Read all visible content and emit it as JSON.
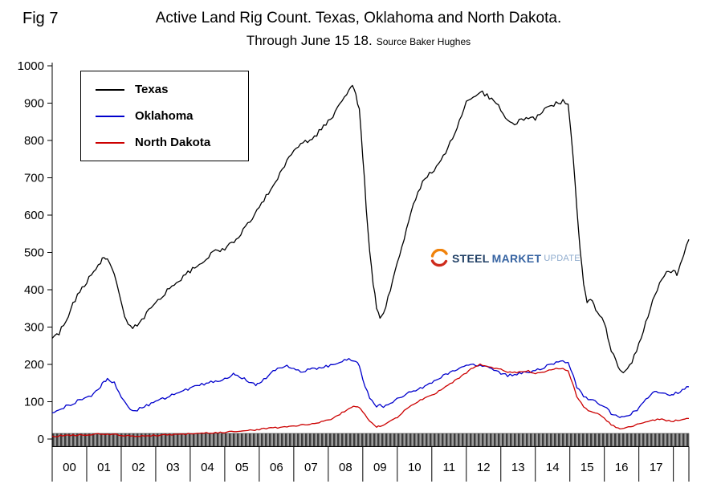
{
  "figure": {
    "fig_label": "Fig 7",
    "title": "Active Land Rig Count. Texas, Oklahoma and North Dakota.",
    "subtitle": "Through June 15 18.",
    "source": "Source Baker Hughes"
  },
  "watermark": {
    "word1": "STEEL",
    "word2": "MARKET",
    "word3": "UPDATE"
  },
  "chart_data": {
    "type": "line",
    "title": "Active Land Rig Count. Texas, Oklahoma and North Dakota. Through June 15 18.",
    "xlabel": "",
    "ylabel": "",
    "grid": false,
    "legend": {
      "position": "top-left",
      "entries": [
        "Texas",
        "Oklahoma",
        "North Dakota"
      ]
    },
    "x_axis": {
      "start": 2000,
      "end": 2018.45,
      "tick_labels": [
        "00",
        "01",
        "02",
        "03",
        "04",
        "05",
        "06",
        "07",
        "08",
        "09",
        "10",
        "11",
        "12",
        "13",
        "14",
        "15",
        "16",
        "17"
      ]
    },
    "y_axis": {
      "min": 0,
      "max": 1000,
      "tick_step": 100,
      "tick_labels": [
        "0",
        "100",
        "200",
        "300",
        "400",
        "500",
        "600",
        "700",
        "800",
        "900",
        "1000"
      ]
    },
    "series": [
      {
        "name": "Texas",
        "color": "#000000",
        "jitter": 6,
        "points": [
          [
            2000.0,
            270
          ],
          [
            2000.2,
            285
          ],
          [
            2000.4,
            320
          ],
          [
            2000.6,
            360
          ],
          [
            2000.8,
            395
          ],
          [
            2001.0,
            420
          ],
          [
            2001.2,
            450
          ],
          [
            2001.4,
            470
          ],
          [
            2001.5,
            490
          ],
          [
            2001.6,
            478
          ],
          [
            2001.8,
            440
          ],
          [
            2002.0,
            370
          ],
          [
            2002.1,
            330
          ],
          [
            2002.2,
            305
          ],
          [
            2002.4,
            300
          ],
          [
            2002.6,
            320
          ],
          [
            2002.8,
            345
          ],
          [
            2003.0,
            360
          ],
          [
            2003.2,
            385
          ],
          [
            2003.4,
            405
          ],
          [
            2003.6,
            420
          ],
          [
            2003.8,
            435
          ],
          [
            2004.0,
            450
          ],
          [
            2004.2,
            465
          ],
          [
            2004.4,
            480
          ],
          [
            2004.6,
            495
          ],
          [
            2004.8,
            505
          ],
          [
            2005.0,
            510
          ],
          [
            2005.2,
            525
          ],
          [
            2005.4,
            545
          ],
          [
            2005.6,
            565
          ],
          [
            2005.8,
            595
          ],
          [
            2006.0,
            625
          ],
          [
            2006.2,
            650
          ],
          [
            2006.4,
            680
          ],
          [
            2006.6,
            710
          ],
          [
            2006.8,
            745
          ],
          [
            2007.0,
            775
          ],
          [
            2007.2,
            788
          ],
          [
            2007.4,
            800
          ],
          [
            2007.6,
            810
          ],
          [
            2007.8,
            830
          ],
          [
            2008.0,
            850
          ],
          [
            2008.2,
            875
          ],
          [
            2008.4,
            905
          ],
          [
            2008.6,
            940
          ],
          [
            2008.7,
            945
          ],
          [
            2008.8,
            925
          ],
          [
            2008.9,
            880
          ],
          [
            2009.0,
            760
          ],
          [
            2009.1,
            620
          ],
          [
            2009.2,
            500
          ],
          [
            2009.3,
            420
          ],
          [
            2009.4,
            350
          ],
          [
            2009.5,
            325
          ],
          [
            2009.6,
            340
          ],
          [
            2009.8,
            395
          ],
          [
            2010.0,
            470
          ],
          [
            2010.2,
            540
          ],
          [
            2010.4,
            610
          ],
          [
            2010.6,
            660
          ],
          [
            2010.8,
            700
          ],
          [
            2011.0,
            715
          ],
          [
            2011.2,
            740
          ],
          [
            2011.4,
            770
          ],
          [
            2011.6,
            805
          ],
          [
            2011.8,
            855
          ],
          [
            2012.0,
            900
          ],
          [
            2012.2,
            915
          ],
          [
            2012.4,
            930
          ],
          [
            2012.6,
            920
          ],
          [
            2012.8,
            910
          ],
          [
            2013.0,
            880
          ],
          [
            2013.2,
            850
          ],
          [
            2013.4,
            845
          ],
          [
            2013.6,
            855
          ],
          [
            2013.8,
            860
          ],
          [
            2014.0,
            858
          ],
          [
            2014.2,
            875
          ],
          [
            2014.4,
            890
          ],
          [
            2014.6,
            900
          ],
          [
            2014.8,
            905
          ],
          [
            2014.95,
            895
          ],
          [
            2015.1,
            750
          ],
          [
            2015.2,
            620
          ],
          [
            2015.3,
            500
          ],
          [
            2015.4,
            420
          ],
          [
            2015.5,
            370
          ],
          [
            2015.6,
            375
          ],
          [
            2015.7,
            355
          ],
          [
            2015.8,
            340
          ],
          [
            2016.0,
            315
          ],
          [
            2016.1,
            270
          ],
          [
            2016.2,
            235
          ],
          [
            2016.4,
            195
          ],
          [
            2016.5,
            180
          ],
          [
            2016.6,
            178
          ],
          [
            2016.8,
            205
          ],
          [
            2017.0,
            255
          ],
          [
            2017.2,
            310
          ],
          [
            2017.4,
            370
          ],
          [
            2017.6,
            420
          ],
          [
            2017.8,
            445
          ],
          [
            2018.0,
            450
          ],
          [
            2018.1,
            442
          ],
          [
            2018.2,
            465
          ],
          [
            2018.3,
            495
          ],
          [
            2018.45,
            535
          ]
        ]
      },
      {
        "name": "Oklahoma",
        "color": "#0000cc",
        "jitter": 3.5,
        "points": [
          [
            2000.0,
            70
          ],
          [
            2000.2,
            78
          ],
          [
            2000.4,
            88
          ],
          [
            2000.6,
            95
          ],
          [
            2000.8,
            105
          ],
          [
            2001.0,
            110
          ],
          [
            2001.2,
            120
          ],
          [
            2001.4,
            140
          ],
          [
            2001.5,
            155
          ],
          [
            2001.6,
            160
          ],
          [
            2001.8,
            150
          ],
          [
            2002.0,
            115
          ],
          [
            2002.2,
            85
          ],
          [
            2002.4,
            75
          ],
          [
            2002.6,
            85
          ],
          [
            2002.8,
            92
          ],
          [
            2003.0,
            100
          ],
          [
            2003.2,
            108
          ],
          [
            2003.4,
            115
          ],
          [
            2003.6,
            122
          ],
          [
            2003.8,
            130
          ],
          [
            2004.0,
            135
          ],
          [
            2004.2,
            142
          ],
          [
            2004.4,
            148
          ],
          [
            2004.6,
            152
          ],
          [
            2004.8,
            155
          ],
          [
            2005.0,
            160
          ],
          [
            2005.2,
            172
          ],
          [
            2005.3,
            175
          ],
          [
            2005.5,
            165
          ],
          [
            2005.7,
            152
          ],
          [
            2005.9,
            145
          ],
          [
            2006.0,
            148
          ],
          [
            2006.2,
            165
          ],
          [
            2006.4,
            180
          ],
          [
            2006.6,
            192
          ],
          [
            2006.8,
            196
          ],
          [
            2007.0,
            190
          ],
          [
            2007.2,
            182
          ],
          [
            2007.4,
            185
          ],
          [
            2007.6,
            188
          ],
          [
            2007.8,
            192
          ],
          [
            2008.0,
            196
          ],
          [
            2008.2,
            200
          ],
          [
            2008.4,
            208
          ],
          [
            2008.6,
            215
          ],
          [
            2008.8,
            208
          ],
          [
            2008.9,
            195
          ],
          [
            2009.0,
            160
          ],
          [
            2009.2,
            110
          ],
          [
            2009.4,
            85
          ],
          [
            2009.5,
            92
          ],
          [
            2009.6,
            84
          ],
          [
            2009.8,
            95
          ],
          [
            2010.0,
            110
          ],
          [
            2010.2,
            118
          ],
          [
            2010.4,
            126
          ],
          [
            2010.6,
            132
          ],
          [
            2010.8,
            140
          ],
          [
            2011.0,
            150
          ],
          [
            2011.2,
            162
          ],
          [
            2011.4,
            172
          ],
          [
            2011.6,
            180
          ],
          [
            2011.8,
            188
          ],
          [
            2012.0,
            195
          ],
          [
            2012.2,
            200
          ],
          [
            2012.4,
            198
          ],
          [
            2012.6,
            192
          ],
          [
            2012.8,
            185
          ],
          [
            2013.0,
            176
          ],
          [
            2013.2,
            170
          ],
          [
            2013.4,
            172
          ],
          [
            2013.6,
            176
          ],
          [
            2013.8,
            180
          ],
          [
            2014.0,
            185
          ],
          [
            2014.2,
            190
          ],
          [
            2014.4,
            198
          ],
          [
            2014.6,
            205
          ],
          [
            2014.8,
            210
          ],
          [
            2014.95,
            205
          ],
          [
            2015.1,
            170
          ],
          [
            2015.2,
            140
          ],
          [
            2015.4,
            115
          ],
          [
            2015.6,
            105
          ],
          [
            2015.8,
            98
          ],
          [
            2016.0,
            88
          ],
          [
            2016.2,
            68
          ],
          [
            2016.4,
            60
          ],
          [
            2016.5,
            58
          ],
          [
            2016.7,
            64
          ],
          [
            2016.9,
            75
          ],
          [
            2017.0,
            82
          ],
          [
            2017.2,
            108
          ],
          [
            2017.4,
            122
          ],
          [
            2017.5,
            126
          ],
          [
            2017.7,
            120
          ],
          [
            2017.9,
            118
          ],
          [
            2018.0,
            120
          ],
          [
            2018.2,
            128
          ],
          [
            2018.45,
            140
          ]
        ]
      },
      {
        "name": "North Dakota",
        "color": "#cc0000",
        "jitter": 2,
        "points": [
          [
            2000.0,
            8
          ],
          [
            2000.3,
            9
          ],
          [
            2000.6,
            10
          ],
          [
            2001.0,
            12
          ],
          [
            2001.4,
            14
          ],
          [
            2001.8,
            12
          ],
          [
            2002.0,
            10
          ],
          [
            2002.4,
            8
          ],
          [
            2002.8,
            9
          ],
          [
            2003.0,
            10
          ],
          [
            2003.4,
            12
          ],
          [
            2003.8,
            13
          ],
          [
            2004.0,
            14
          ],
          [
            2004.4,
            16
          ],
          [
            2004.8,
            17
          ],
          [
            2005.0,
            18
          ],
          [
            2005.4,
            21
          ],
          [
            2005.8,
            24
          ],
          [
            2006.0,
            26
          ],
          [
            2006.4,
            30
          ],
          [
            2006.8,
            33
          ],
          [
            2007.0,
            35
          ],
          [
            2007.4,
            40
          ],
          [
            2007.8,
            46
          ],
          [
            2008.0,
            50
          ],
          [
            2008.2,
            58
          ],
          [
            2008.4,
            70
          ],
          [
            2008.6,
            82
          ],
          [
            2008.8,
            88
          ],
          [
            2008.9,
            84
          ],
          [
            2009.0,
            72
          ],
          [
            2009.2,
            48
          ],
          [
            2009.4,
            33
          ],
          [
            2009.5,
            35
          ],
          [
            2009.7,
            42
          ],
          [
            2009.9,
            52
          ],
          [
            2010.0,
            58
          ],
          [
            2010.2,
            75
          ],
          [
            2010.4,
            90
          ],
          [
            2010.6,
            100
          ],
          [
            2010.8,
            110
          ],
          [
            2011.0,
            118
          ],
          [
            2011.2,
            128
          ],
          [
            2011.4,
            140
          ],
          [
            2011.6,
            152
          ],
          [
            2011.8,
            165
          ],
          [
            2012.0,
            178
          ],
          [
            2012.2,
            192
          ],
          [
            2012.4,
            200
          ],
          [
            2012.6,
            196
          ],
          [
            2012.8,
            190
          ],
          [
            2013.0,
            186
          ],
          [
            2013.2,
            180
          ],
          [
            2013.4,
            178
          ],
          [
            2013.6,
            180
          ],
          [
            2013.8,
            182
          ],
          [
            2014.0,
            176
          ],
          [
            2014.2,
            180
          ],
          [
            2014.4,
            184
          ],
          [
            2014.6,
            188
          ],
          [
            2014.8,
            190
          ],
          [
            2014.95,
            182
          ],
          [
            2015.1,
            145
          ],
          [
            2015.2,
            115
          ],
          [
            2015.4,
            85
          ],
          [
            2015.6,
            74
          ],
          [
            2015.8,
            70
          ],
          [
            2016.0,
            56
          ],
          [
            2016.2,
            38
          ],
          [
            2016.4,
            29
          ],
          [
            2016.5,
            27
          ],
          [
            2016.7,
            32
          ],
          [
            2016.9,
            38
          ],
          [
            2017.0,
            41
          ],
          [
            2017.2,
            47
          ],
          [
            2017.4,
            51
          ],
          [
            2017.6,
            53
          ],
          [
            2017.8,
            50
          ],
          [
            2018.0,
            48
          ],
          [
            2018.2,
            52
          ],
          [
            2018.45,
            55
          ]
        ]
      }
    ]
  }
}
